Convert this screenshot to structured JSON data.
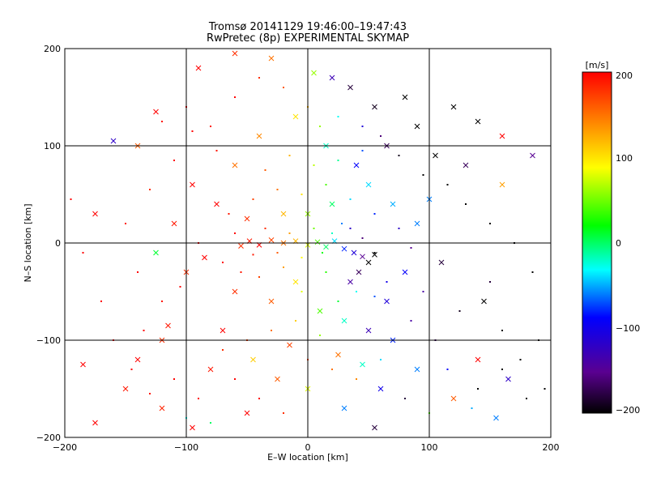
{
  "chart_data": {
    "type": "scatter",
    "title": "Tromsø 20141129 19:46:00–19:47:43",
    "subtitle": "RwPretec (8p) EXPERIMENTAL SKYMAP",
    "xlabel": "E–W location [km]",
    "ylabel": "N–S location [km]",
    "xlim": [
      -200,
      200
    ],
    "ylim": [
      -200,
      200
    ],
    "x_ticks": [
      "−200",
      "−100",
      "0",
      "100",
      "200"
    ],
    "y_ticks": [
      "−200",
      "−100",
      "0",
      "100",
      "200"
    ],
    "grid_lines": [
      -100,
      0,
      100
    ],
    "colorbar": {
      "label": "[m/s]",
      "range": [
        -200,
        200
      ],
      "ticks": [
        "200",
        "100",
        "0",
        "−100",
        "−200"
      ],
      "colors": [
        "#000000",
        "#5a0090",
        "#0000ff",
        "#00ffff",
        "#00ff00",
        "#ffff00",
        "#ff0000"
      ]
    },
    "series": [
      {
        "marker": "cross",
        "points": [
          [
            -55,
            -3,
            180
          ],
          [
            -48,
            2,
            190
          ],
          [
            -40,
            -2,
            200
          ],
          [
            -30,
            3,
            170
          ],
          [
            -20,
            0,
            150
          ],
          [
            -10,
            2,
            120
          ],
          [
            0,
            -2,
            80
          ],
          [
            8,
            1,
            40
          ],
          [
            15,
            -4,
            0
          ],
          [
            22,
            2,
            -40
          ],
          [
            30,
            -6,
            -80
          ],
          [
            38,
            -10,
            -110
          ],
          [
            45,
            -14,
            -150
          ],
          [
            50,
            -20,
            -200
          ],
          [
            55,
            -12,
            -200
          ],
          [
            42,
            -30,
            -170
          ],
          [
            35,
            -40,
            -140
          ],
          [
            -100,
            -30,
            180
          ],
          [
            -115,
            -85,
            190
          ],
          [
            -140,
            -120,
            200
          ],
          [
            -120,
            -170,
            185
          ],
          [
            -95,
            -190,
            200
          ],
          [
            -160,
            105,
            -120
          ],
          [
            -140,
            100,
            160
          ],
          [
            -125,
            135,
            200
          ],
          [
            -90,
            180,
            200
          ],
          [
            -60,
            195,
            180
          ],
          [
            -30,
            190,
            150
          ],
          [
            5,
            175,
            60
          ],
          [
            20,
            170,
            -130
          ],
          [
            35,
            160,
            -180
          ],
          [
            55,
            140,
            -190
          ],
          [
            80,
            150,
            -200
          ],
          [
            120,
            140,
            -200
          ],
          [
            140,
            125,
            -200
          ],
          [
            160,
            110,
            200
          ],
          [
            130,
            80,
            -170
          ],
          [
            160,
            60,
            130
          ],
          [
            185,
            90,
            -150
          ],
          [
            100,
            45,
            -60
          ],
          [
            110,
            -20,
            -180
          ],
          [
            145,
            -60,
            -200
          ],
          [
            140,
            -120,
            200
          ],
          [
            165,
            -140,
            -120
          ],
          [
            155,
            -180,
            -60
          ],
          [
            120,
            -160,
            160
          ],
          [
            90,
            -130,
            -60
          ],
          [
            70,
            -100,
            -80
          ],
          [
            60,
            -150,
            -100
          ],
          [
            30,
            -170,
            -60
          ],
          [
            0,
            -150,
            80
          ],
          [
            -25,
            -140,
            160
          ],
          [
            -50,
            -175,
            200
          ],
          [
            -80,
            -130,
            190
          ],
          [
            -70,
            -90,
            200
          ],
          [
            -60,
            -50,
            180
          ],
          [
            -30,
            -60,
            160
          ],
          [
            -10,
            -40,
            100
          ],
          [
            10,
            -70,
            40
          ],
          [
            30,
            -80,
            -20
          ],
          [
            50,
            -90,
            -130
          ],
          [
            65,
            -60,
            -110
          ],
          [
            80,
            -30,
            -90
          ],
          [
            90,
            20,
            -60
          ],
          [
            70,
            40,
            -50
          ],
          [
            50,
            60,
            -40
          ],
          [
            20,
            40,
            0
          ],
          [
            0,
            30,
            60
          ],
          [
            -20,
            30,
            120
          ],
          [
            -50,
            25,
            180
          ],
          [
            -75,
            40,
            200
          ],
          [
            -110,
            20,
            190
          ],
          [
            -125,
            -10,
            10
          ],
          [
            -85,
            -15,
            200
          ],
          [
            -95,
            60,
            200
          ],
          [
            -60,
            80,
            150
          ],
          [
            -40,
            110,
            140
          ],
          [
            -10,
            130,
            100
          ],
          [
            15,
            100,
            -20
          ],
          [
            40,
            80,
            -90
          ],
          [
            65,
            100,
            -170
          ],
          [
            90,
            120,
            -200
          ],
          [
            105,
            90,
            -200
          ],
          [
            -45,
            -120,
            110
          ],
          [
            -15,
            -105,
            170
          ],
          [
            25,
            -115,
            150
          ],
          [
            45,
            -125,
            -20
          ],
          [
            55,
            -190,
            -180
          ],
          [
            -175,
            30,
            200
          ],
          [
            -185,
            -125,
            200
          ],
          [
            -150,
            -150,
            190
          ],
          [
            -175,
            -185,
            200
          ],
          [
            -120,
            -100,
            180
          ]
        ]
      },
      {
        "marker": "dot",
        "points": [
          [
            -195,
            45,
            200
          ],
          [
            -170,
            -60,
            200
          ],
          [
            -150,
            20,
            190
          ],
          [
            -130,
            55,
            180
          ],
          [
            -110,
            85,
            200
          ],
          [
            -100,
            140,
            200
          ],
          [
            -80,
            120,
            190
          ],
          [
            -60,
            150,
            200
          ],
          [
            -40,
            170,
            180
          ],
          [
            -20,
            160,
            160
          ],
          [
            0,
            140,
            120
          ],
          [
            10,
            120,
            60
          ],
          [
            25,
            130,
            -30
          ],
          [
            45,
            120,
            -110
          ],
          [
            60,
            110,
            -160
          ],
          [
            75,
            90,
            -190
          ],
          [
            95,
            70,
            -200
          ],
          [
            115,
            60,
            -200
          ],
          [
            130,
            40,
            -200
          ],
          [
            150,
            20,
            -200
          ],
          [
            170,
            0,
            -200
          ],
          [
            185,
            -30,
            -200
          ],
          [
            190,
            -100,
            -200
          ],
          [
            195,
            -150,
            -200
          ],
          [
            175,
            -120,
            -200
          ],
          [
            160,
            -90,
            -200
          ],
          [
            150,
            -40,
            -180
          ],
          [
            125,
            -70,
            -190
          ],
          [
            105,
            -100,
            -170
          ],
          [
            85,
            -80,
            -140
          ],
          [
            65,
            -40,
            -100
          ],
          [
            55,
            -10,
            -200
          ],
          [
            45,
            5,
            -160
          ],
          [
            35,
            15,
            -120
          ],
          [
            28,
            20,
            -60
          ],
          [
            20,
            10,
            -20
          ],
          [
            12,
            -10,
            20
          ],
          [
            5,
            15,
            50
          ],
          [
            -5,
            -15,
            90
          ],
          [
            -15,
            10,
            130
          ],
          [
            -25,
            -10,
            160
          ],
          [
            -35,
            15,
            180
          ],
          [
            -45,
            -12,
            190
          ],
          [
            -60,
            10,
            200
          ],
          [
            -70,
            -20,
            200
          ],
          [
            -90,
            0,
            200
          ],
          [
            -105,
            -45,
            200
          ],
          [
            -120,
            -60,
            190
          ],
          [
            -135,
            -90,
            200
          ],
          [
            -145,
            -130,
            200
          ],
          [
            -130,
            -155,
            190
          ],
          [
            -110,
            -140,
            200
          ],
          [
            -90,
            -160,
            200
          ],
          [
            -70,
            -110,
            180
          ],
          [
            -50,
            -100,
            170
          ],
          [
            -30,
            -90,
            150
          ],
          [
            -10,
            -80,
            110
          ],
          [
            10,
            -95,
            60
          ],
          [
            25,
            -60,
            10
          ],
          [
            40,
            -50,
            -30
          ],
          [
            55,
            -55,
            -70
          ],
          [
            15,
            -30,
            30
          ],
          [
            -5,
            -50,
            80
          ],
          [
            -20,
            -25,
            130
          ],
          [
            -40,
            -35,
            170
          ],
          [
            -55,
            -30,
            190
          ],
          [
            -65,
            30,
            190
          ],
          [
            -45,
            45,
            170
          ],
          [
            -25,
            55,
            150
          ],
          [
            -5,
            50,
            100
          ],
          [
            15,
            60,
            40
          ],
          [
            35,
            45,
            -40
          ],
          [
            55,
            30,
            -80
          ],
          [
            75,
            15,
            -120
          ],
          [
            85,
            -5,
            -150
          ],
          [
            95,
            -50,
            -140
          ],
          [
            115,
            -130,
            -90
          ],
          [
            135,
            -170,
            -50
          ],
          [
            100,
            -175,
            40
          ],
          [
            80,
            -160,
            -180
          ],
          [
            60,
            -120,
            -40
          ],
          [
            40,
            -140,
            140
          ],
          [
            20,
            -130,
            150
          ],
          [
            0,
            -120,
            170
          ],
          [
            -20,
            -175,
            180
          ],
          [
            -40,
            -160,
            200
          ],
          [
            -60,
            -140,
            200
          ],
          [
            -80,
            -185,
            0
          ],
          [
            -100,
            -180,
            -30
          ],
          [
            160,
            -130,
            -200
          ],
          [
            180,
            -160,
            -200
          ],
          [
            140,
            -150,
            -200
          ],
          [
            5,
            80,
            70
          ],
          [
            -15,
            90,
            120
          ],
          [
            -35,
            75,
            160
          ],
          [
            25,
            85,
            -10
          ],
          [
            45,
            95,
            -70
          ],
          [
            -75,
            95,
            190
          ],
          [
            -95,
            115,
            200
          ],
          [
            -120,
            125,
            190
          ],
          [
            -140,
            -30,
            200
          ],
          [
            -160,
            -100,
            200
          ],
          [
            -185,
            -10,
            200
          ]
        ]
      }
    ]
  }
}
